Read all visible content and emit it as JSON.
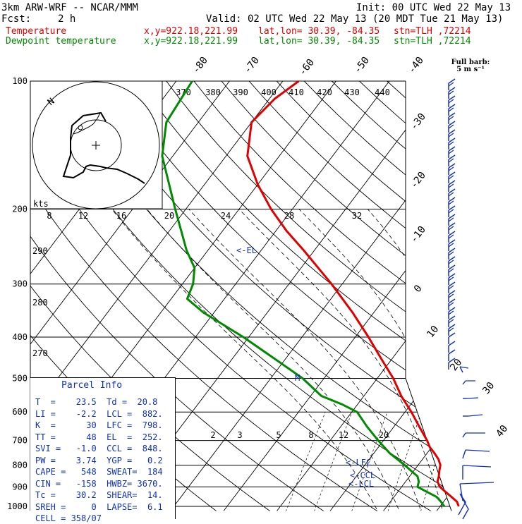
{
  "header": {
    "model": "3km ARW-WRF -- NCAR/MMM",
    "init": "Init: 00 UTC Wed 22 May 13",
    "fcst_label": "Fcst:",
    "fcst_value": "2 h",
    "valid": "Valid: 02 UTC Wed 22 May 13 (20 MDT Tue 21 May 13)",
    "temp_label": "Temperature",
    "temp_xy": "x,y=922.18,221.99",
    "temp_latlon": "lat,lon= 30.39, -84.35",
    "temp_stn": "stn=TLH ,72214",
    "dew_label": "Dewpoint temperature",
    "dew_xy": "x,y=922.18,221.99",
    "dew_latlon": "lat,lon= 30.39, -84.35",
    "dew_stn": "stn=TLH ,72214"
  },
  "colors": {
    "temperature": "#e00000",
    "dewpoint": "#008a00",
    "wind": "#1030c0",
    "parcel_text": "#1030c0"
  },
  "barb_title": [
    "Full barb:",
    "5 m s⁻¹"
  ],
  "parcel_info": {
    "title": "Parcel Info",
    "rows": [
      "T  =    23.5  Td =  20.8",
      "LI =    -2.2  LCL =  882.",
      "K  =      30  LFC =  798.",
      "TT =      48  EL  =  252.",
      "SVI =   -1.0  CCL =  848.",
      "PW =    3.74  YGP =   0.2",
      "CAPE =   548  SWEAT=  184",
      "CIN =   -158  HWBZ= 3670.",
      "Tc =    30.2  SHEAR=  14.",
      "SREH =     0  LAPSE=  6.1",
      "CELL = 358/07"
    ]
  },
  "chart_data": {
    "type": "line",
    "subtype": "skew-T log-p",
    "pressure_levels": [
      100,
      200,
      300,
      400,
      500,
      600,
      700,
      800,
      900,
      1000
    ],
    "pressure_range_hPa": [
      100,
      1025
    ],
    "isotherm_labels": [
      -80,
      -70,
      -60,
      -50,
      -40,
      -30,
      -20,
      -10,
      0,
      10,
      20,
      30,
      40
    ],
    "potential_temperature_labels": [
      370,
      380,
      390,
      400,
      410,
      420,
      430,
      440
    ],
    "mixing_ratio_labels": [
      2,
      3,
      5,
      8,
      12,
      20
    ],
    "hodograph": {
      "units_label": "kts",
      "speed_ticks": [
        8,
        12,
        16,
        20,
        24,
        28,
        32
      ],
      "direction_label": "N",
      "level_labels": [
        290,
        280,
        270
      ]
    },
    "level_markers": [
      "EL",
      "M",
      "LFC",
      "CCL",
      "LCL"
    ],
    "series": [
      {
        "name": "Temperature",
        "points": [
          [
            1000,
            23.5
          ],
          [
            975,
            22.5
          ],
          [
            950,
            20.8
          ],
          [
            925,
            19.0
          ],
          [
            900,
            17.2
          ],
          [
            875,
            16.0
          ],
          [
            850,
            15.5
          ],
          [
            825,
            14.8
          ],
          [
            800,
            14.2
          ],
          [
            775,
            13.0
          ],
          [
            750,
            11.4
          ],
          [
            725,
            9.6
          ],
          [
            700,
            8.2
          ],
          [
            650,
            4.8
          ],
          [
            600,
            1.2
          ],
          [
            550,
            -3.0
          ],
          [
            500,
            -7.0
          ],
          [
            450,
            -12.0
          ],
          [
            400,
            -17.5
          ],
          [
            350,
            -24.0
          ],
          [
            300,
            -32.0
          ],
          [
            250,
            -42.0
          ],
          [
            225,
            -48.0
          ],
          [
            200,
            -54.0
          ],
          [
            175,
            -60.0
          ],
          [
            150,
            -66.0
          ],
          [
            125,
            -70.0
          ],
          [
            110,
            -69.0
          ],
          [
            100,
            -67.0
          ]
        ]
      },
      {
        "name": "Dewpoint temperature",
        "points": [
          [
            1000,
            20.8
          ],
          [
            975,
            19.5
          ],
          [
            950,
            18.0
          ],
          [
            925,
            15.5
          ],
          [
            900,
            13.0
          ],
          [
            875,
            12.5
          ],
          [
            850,
            11.5
          ],
          [
            825,
            9.5
          ],
          [
            800,
            7.5
          ],
          [
            750,
            3.0
          ],
          [
            700,
            -1.0
          ],
          [
            650,
            -5.0
          ],
          [
            600,
            -9.0
          ],
          [
            575,
            -13.0
          ],
          [
            550,
            -18.0
          ],
          [
            500,
            -24.0
          ],
          [
            450,
            -32.0
          ],
          [
            400,
            -41.0
          ],
          [
            350,
            -52.0
          ],
          [
            325,
            -57.0
          ],
          [
            300,
            -58.0
          ],
          [
            275,
            -60.0
          ],
          [
            250,
            -64.0
          ],
          [
            200,
            -72.0
          ],
          [
            150,
            -82.0
          ],
          [
            125,
            -86.0
          ],
          [
            100,
            -87.0
          ]
        ]
      }
    ]
  }
}
